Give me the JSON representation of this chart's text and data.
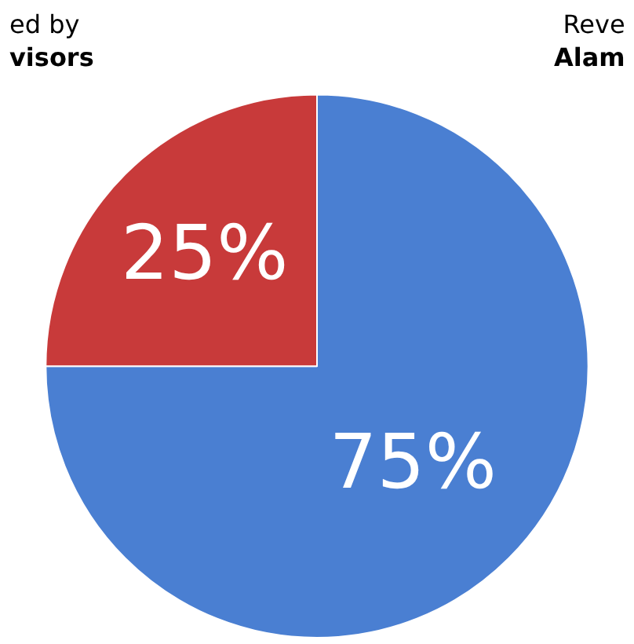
{
  "chart_data": {
    "type": "pie",
    "categories": [
      null,
      null
    ],
    "values": [
      75,
      25
    ],
    "colors": [
      "#4a7fd2",
      "#c83a3a"
    ],
    "value_labels": [
      "75%",
      "25%"
    ],
    "annotations": [
      "ed by\n**visors**",
      "Reve\n**Alam**"
    ],
    "legend": false
  }
}
